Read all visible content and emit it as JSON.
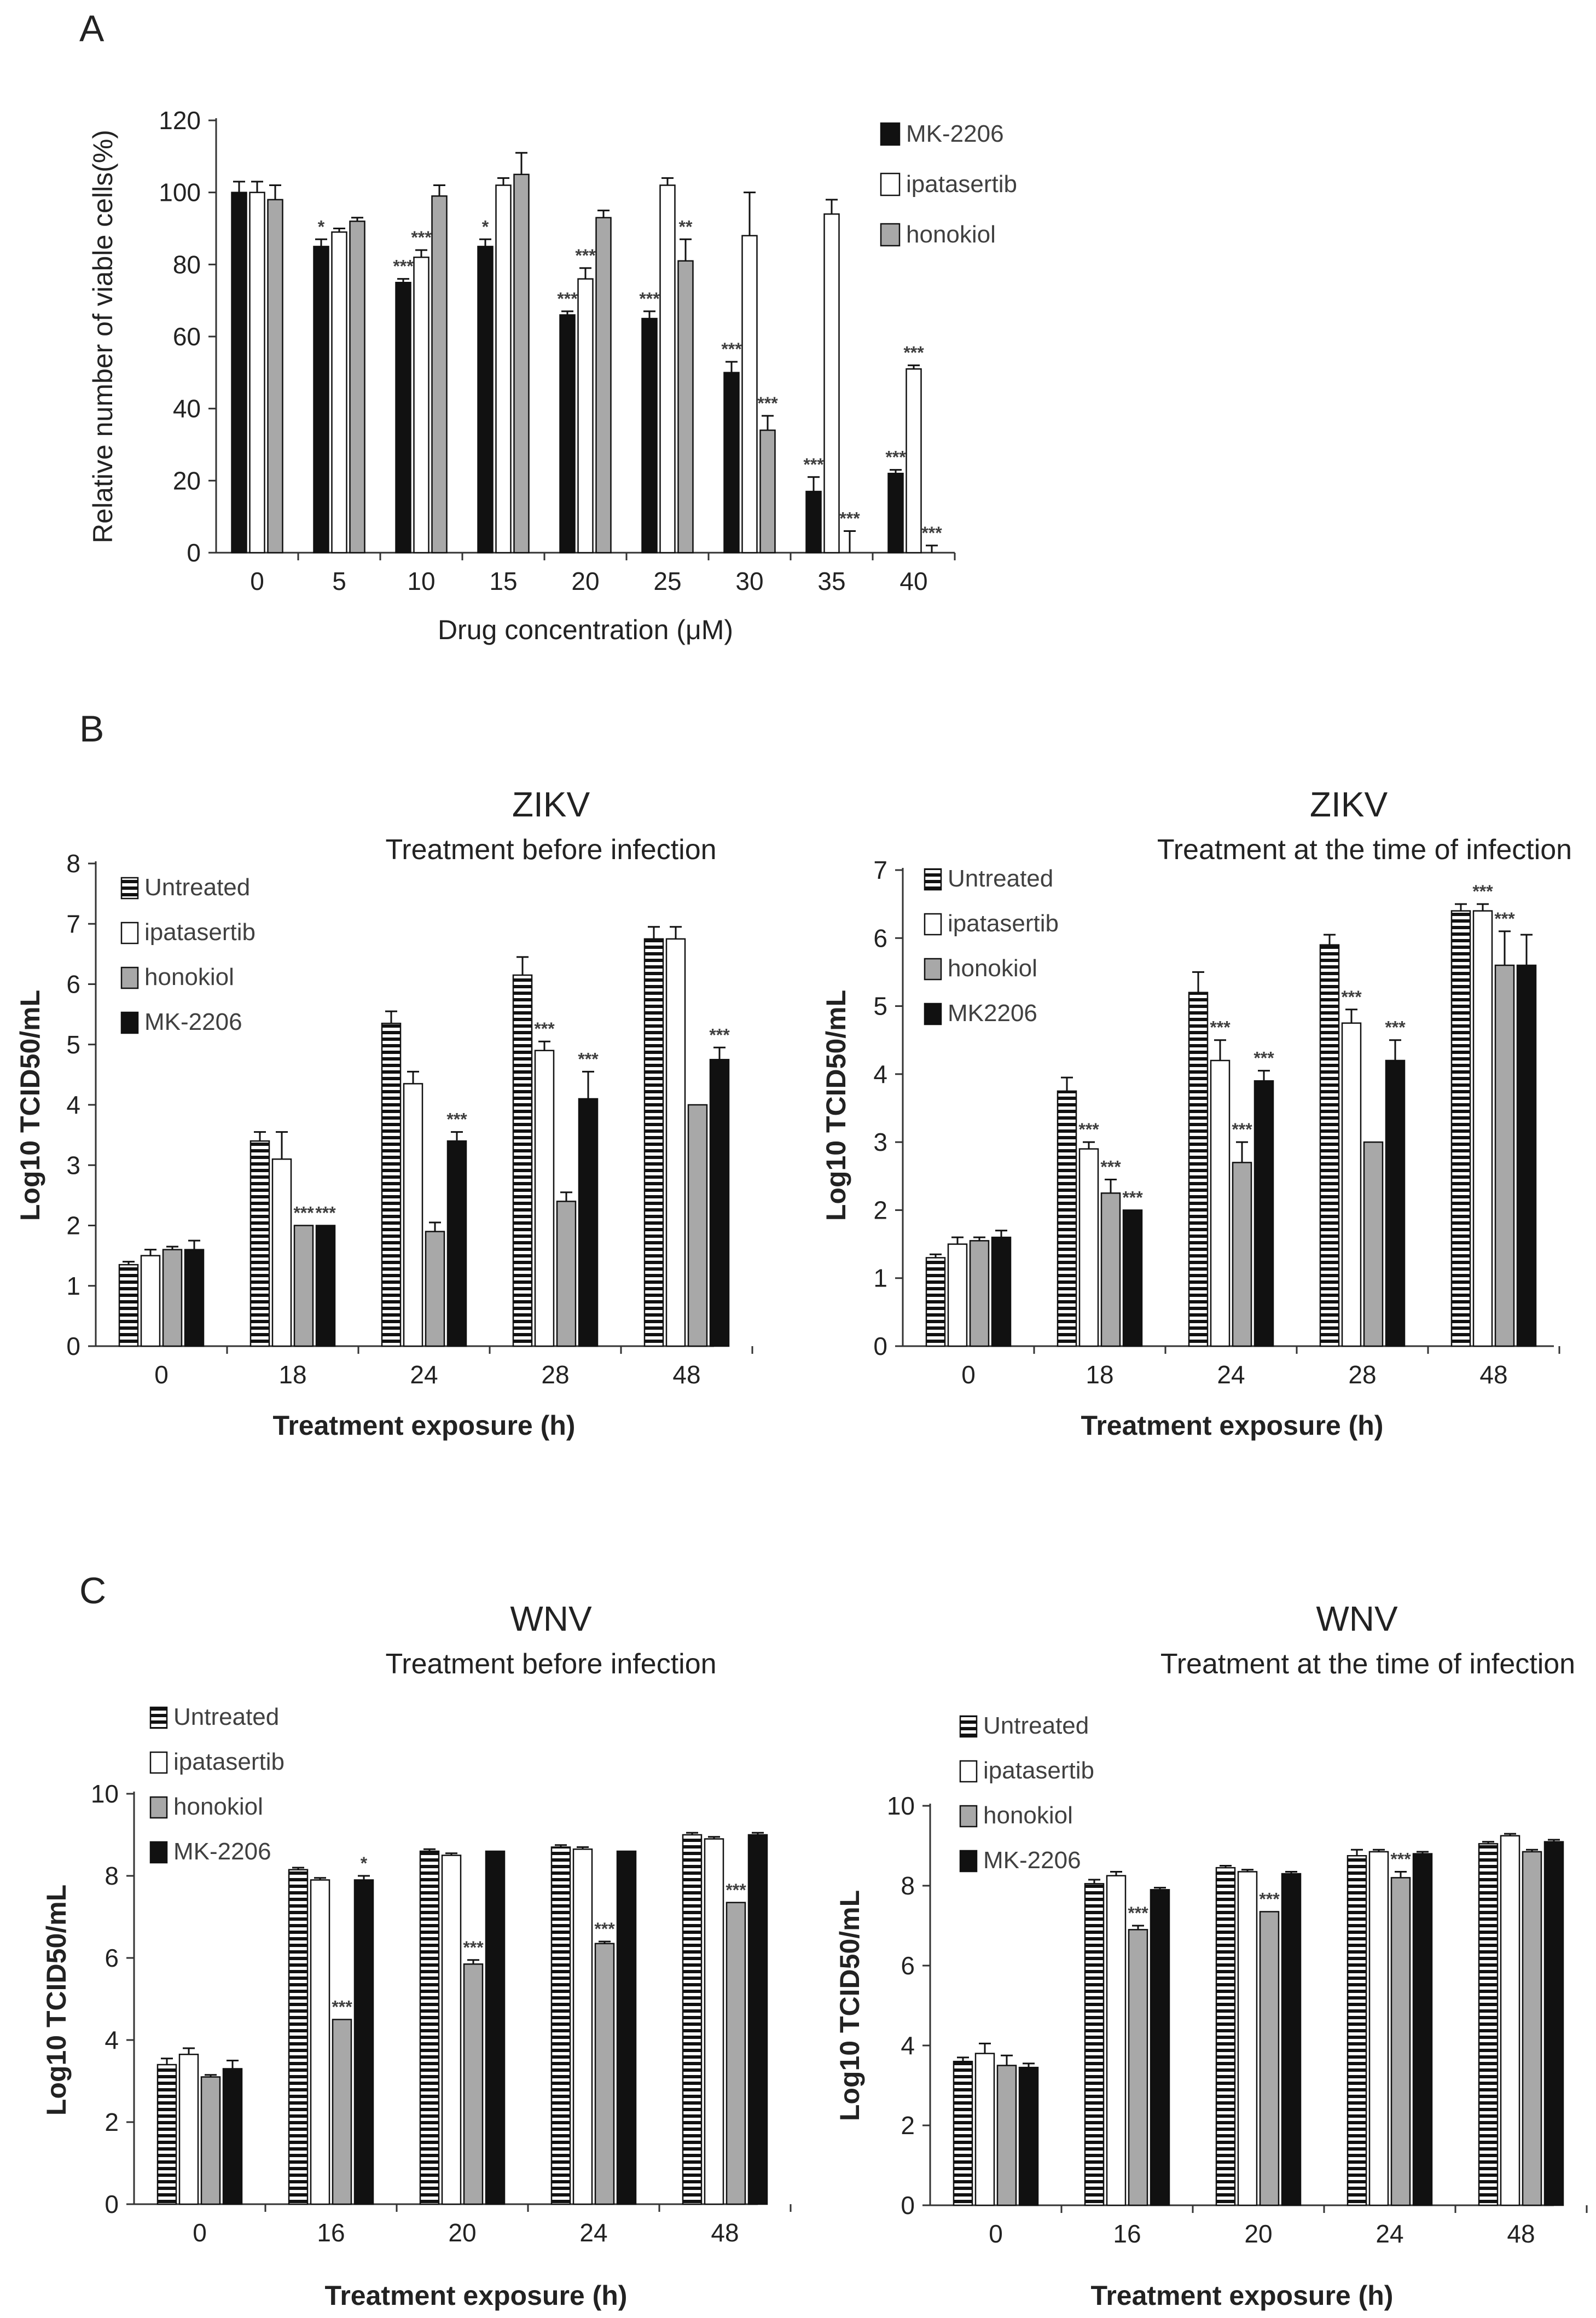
{
  "panels": [
    {
      "letter": "A",
      "chart_data": {
        "type": "bar",
        "title": "",
        "subtitle": "",
        "xlabel": "Drug concentration (μM)",
        "ylabel": "Relative number of viable cells(%)",
        "ylim": [
          0,
          120
        ],
        "yticks": [
          0,
          20,
          40,
          60,
          80,
          100,
          120
        ],
        "categories": [
          "0",
          "5",
          "10",
          "15",
          "20",
          "25",
          "30",
          "35",
          "40"
        ],
        "legend_position": "top-right",
        "series": [
          {
            "name": "MK-2206",
            "style": "black",
            "values": [
              100,
              85,
              75,
              85,
              66,
              65,
              50,
              17,
              22
            ],
            "errors": [
              3,
              2,
              1,
              2,
              1,
              2,
              3,
              4,
              1
            ],
            "stars": [
              "",
              "*",
              "***",
              "*",
              "***",
              "***",
              "***",
              "***",
              "***"
            ]
          },
          {
            "name": "ipatasertib",
            "style": "white",
            "values": [
              100,
              89,
              82,
              102,
              76,
              102,
              88,
              94,
              51
            ],
            "errors": [
              3,
              1,
              2,
              2,
              3,
              2,
              12,
              4,
              1
            ],
            "stars": [
              "",
              "",
              "***",
              "",
              "***",
              "",
              "",
              "",
              "***"
            ]
          },
          {
            "name": "honokiol",
            "style": "gray",
            "values": [
              98,
              92,
              99,
              105,
              93,
              81,
              34,
              0,
              0
            ],
            "errors": [
              4,
              1,
              3,
              6,
              2,
              6,
              4,
              6,
              2
            ],
            "stars": [
              "",
              "",
              "",
              "",
              "",
              "**",
              "***",
              "***",
              "***"
            ]
          }
        ]
      }
    },
    {
      "letter": "B",
      "chart_data": {
        "type": "bar",
        "title": "ZIKV",
        "subtitle": "Treatment before infection",
        "xlabel": "Treatment exposure (h)",
        "ylabel": "Log10 TCID50/mL",
        "ylim": [
          0,
          8
        ],
        "yticks": [
          0,
          1,
          2,
          3,
          4,
          5,
          6,
          7,
          8
        ],
        "categories": [
          "0",
          "18",
          "24",
          "28",
          "48"
        ],
        "legend_position": "top-left",
        "series": [
          {
            "name": "Untreated",
            "style": "striped",
            "values": [
              1.35,
              3.4,
              5.35,
              6.15,
              6.75
            ],
            "errors": [
              0.05,
              0.15,
              0.2,
              0.3,
              0.2
            ],
            "stars": [
              "",
              "",
              "",
              "",
              ""
            ]
          },
          {
            "name": "ipatasertib",
            "style": "white",
            "values": [
              1.5,
              3.1,
              4.35,
              4.9,
              6.75
            ],
            "errors": [
              0.1,
              0.45,
              0.2,
              0.15,
              0.2
            ],
            "stars": [
              "",
              "",
              "",
              "***",
              ""
            ]
          },
          {
            "name": "honokiol",
            "style": "gray",
            "values": [
              1.6,
              2.0,
              1.9,
              2.4,
              4.0
            ],
            "errors": [
              0.05,
              0,
              0.15,
              0.15,
              0
            ],
            "stars": [
              "",
              "***",
              "",
              "",
              ""
            ]
          },
          {
            "name": "MK-2206",
            "style": "black",
            "values": [
              1.6,
              2.0,
              3.4,
              4.1,
              4.75
            ],
            "errors": [
              0.15,
              0,
              0.15,
              0.45,
              0.2
            ],
            "stars": [
              "",
              "***",
              "***",
              "***",
              "***"
            ]
          }
        ]
      }
    },
    {
      "letter": "",
      "chart_data": {
        "type": "bar",
        "title": "ZIKV",
        "subtitle": "Treatment at the time of infection",
        "xlabel": "Treatment exposure (h)",
        "ylabel": "Log10 TCID50/mL",
        "ylim": [
          0,
          7
        ],
        "yticks": [
          0,
          1,
          2,
          3,
          4,
          5,
          6,
          7
        ],
        "categories": [
          "0",
          "18",
          "24",
          "28",
          "48"
        ],
        "legend_position": "top-left",
        "series": [
          {
            "name": "Untreated",
            "style": "striped",
            "values": [
              1.3,
              3.75,
              5.2,
              5.9,
              6.4
            ],
            "errors": [
              0.05,
              0.2,
              0.3,
              0.15,
              0.1
            ],
            "stars": [
              "",
              "",
              "",
              "",
              ""
            ]
          },
          {
            "name": "ipatasertib",
            "style": "white",
            "values": [
              1.5,
              2.9,
              4.2,
              4.75,
              6.4
            ],
            "errors": [
              0.1,
              0.1,
              0.3,
              0.2,
              0.1
            ],
            "stars": [
              "",
              "***",
              "***",
              "***",
              "***"
            ]
          },
          {
            "name": "honokiol",
            "style": "gray",
            "values": [
              1.55,
              2.25,
              2.7,
              3.0,
              5.6
            ],
            "errors": [
              0.05,
              0.2,
              0.3,
              0,
              0.5
            ],
            "stars": [
              "",
              "***",
              "***",
              "",
              "***"
            ]
          },
          {
            "name": "MK2206",
            "style": "black",
            "values": [
              1.6,
              2.0,
              3.9,
              4.2,
              5.6
            ],
            "errors": [
              0.1,
              0,
              0.15,
              0.3,
              0.45
            ],
            "stars": [
              "",
              "***",
              "***",
              "***",
              ""
            ]
          }
        ]
      }
    },
    {
      "letter": "C",
      "chart_data": {
        "type": "bar",
        "title": "WNV",
        "subtitle": "Treatment before infection",
        "xlabel": "Treatment exposure (h)",
        "ylabel": "Log10 TCID50/mL",
        "ylim": [
          0,
          10
        ],
        "yticks": [
          0,
          2,
          4,
          6,
          8,
          10
        ],
        "categories": [
          "0",
          "16",
          "20",
          "24",
          "48"
        ],
        "legend_position": "top-left",
        "series": [
          {
            "name": "Untreated",
            "style": "striped",
            "values": [
              3.4,
              8.15,
              8.6,
              8.7,
              9.0
            ],
            "errors": [
              0.15,
              0.05,
              0.05,
              0.05,
              0.05
            ],
            "stars": [
              "",
              "",
              "",
              "",
              ""
            ]
          },
          {
            "name": "ipatasertib",
            "style": "white",
            "values": [
              3.65,
              7.9,
              8.5,
              8.65,
              8.9
            ],
            "errors": [
              0.15,
              0.05,
              0.05,
              0.05,
              0.05
            ],
            "stars": [
              "",
              "",
              "",
              "",
              ""
            ]
          },
          {
            "name": "honokiol",
            "style": "gray",
            "values": [
              3.1,
              4.5,
              5.85,
              6.35,
              7.35
            ],
            "errors": [
              0.05,
              0,
              0.1,
              0.05,
              0
            ],
            "stars": [
              "",
              "***",
              "***",
              "***",
              "***"
            ]
          },
          {
            "name": "MK-2206",
            "style": "black",
            "values": [
              3.3,
              7.9,
              8.6,
              8.6,
              9.0
            ],
            "errors": [
              0.2,
              0.1,
              0,
              0,
              0.05
            ],
            "stars": [
              "",
              "*",
              "",
              "",
              ""
            ]
          }
        ]
      }
    },
    {
      "letter": "",
      "chart_data": {
        "type": "bar",
        "title": "WNV",
        "subtitle": "Treatment at the time of infection",
        "xlabel": "Treatment exposure (h)",
        "ylabel": "Log10 TCID50/mL",
        "ylim": [
          0,
          10
        ],
        "yticks": [
          0,
          2,
          4,
          6,
          8,
          10
        ],
        "categories": [
          "0",
          "16",
          "20",
          "24",
          "48"
        ],
        "legend_position": "top-left",
        "series": [
          {
            "name": "Untreated",
            "style": "striped",
            "values": [
              3.6,
              8.05,
              8.45,
              8.75,
              9.05
            ],
            "errors": [
              0.1,
              0.1,
              0.05,
              0.15,
              0.05
            ],
            "stars": [
              "",
              "",
              "",
              "",
              ""
            ]
          },
          {
            "name": "ipatasertib",
            "style": "white",
            "values": [
              3.8,
              8.25,
              8.35,
              8.85,
              9.25
            ],
            "errors": [
              0.25,
              0.1,
              0.05,
              0.05,
              0.05
            ],
            "stars": [
              "",
              "",
              "",
              "",
              ""
            ]
          },
          {
            "name": "honokiol",
            "style": "gray",
            "values": [
              3.5,
              6.9,
              7.35,
              8.2,
              8.85
            ],
            "errors": [
              0.25,
              0.1,
              0,
              0.15,
              0.05
            ],
            "stars": [
              "",
              "***",
              "***",
              "***",
              ""
            ]
          },
          {
            "name": "MK-2206",
            "style": "black",
            "values": [
              3.45,
              7.9,
              8.3,
              8.8,
              9.1
            ],
            "errors": [
              0.1,
              0.05,
              0.05,
              0.05,
              0.05
            ],
            "stars": [
              "",
              "",
              "",
              "",
              ""
            ]
          }
        ]
      }
    }
  ]
}
